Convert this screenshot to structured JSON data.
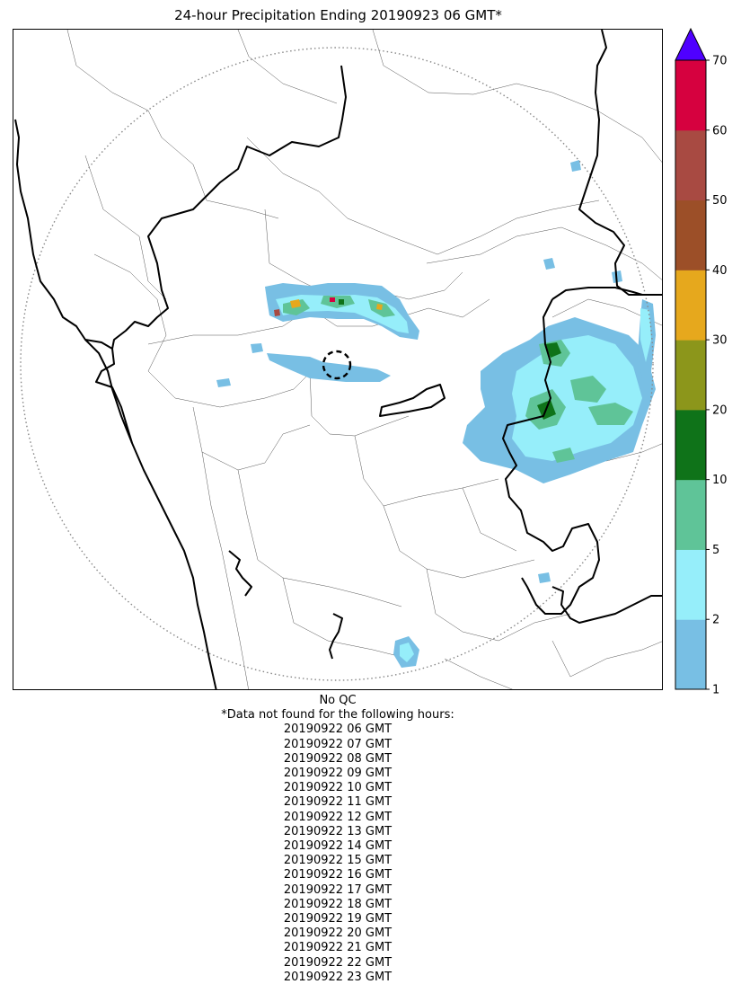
{
  "title": "24-hour Precipitation Ending 20190923 06 GMT*",
  "colorbar": {
    "levels": [
      1,
      2,
      5,
      10,
      20,
      30,
      40,
      50,
      60,
      70
    ],
    "tick_labels": [
      "1",
      "2",
      "5",
      "10",
      "20",
      "30",
      "40",
      "50",
      "60",
      "70"
    ],
    "colors": [
      "#78bfe4",
      "#96eefa",
      "#5fc498",
      "#0f7319",
      "#8c961b",
      "#e6a81d",
      "#9c4f28",
      "#a84a42",
      "#d6013f"
    ],
    "extend_color": "#4f00ff"
  },
  "footer": {
    "qc_status": "No QC",
    "missing_header": "*Data not found for the following hours:",
    "missing_hours": [
      "20190922 06 GMT",
      "20190922 07 GMT",
      "20190922 08 GMT",
      "20190922 09 GMT",
      "20190922 10 GMT",
      "20190922 11 GMT",
      "20190922 12 GMT",
      "20190922 13 GMT",
      "20190922 14 GMT",
      "20190922 15 GMT",
      "20190922 16 GMT",
      "20190922 17 GMT",
      "20190922 18 GMT",
      "20190922 19 GMT",
      "20190922 20 GMT",
      "20190922 21 GMT",
      "20190922 22 GMT",
      "20190922 23 GMT"
    ]
  },
  "colors": {
    "state_border": "#000000",
    "district_border": "#555555",
    "range_ring": "#888888"
  }
}
